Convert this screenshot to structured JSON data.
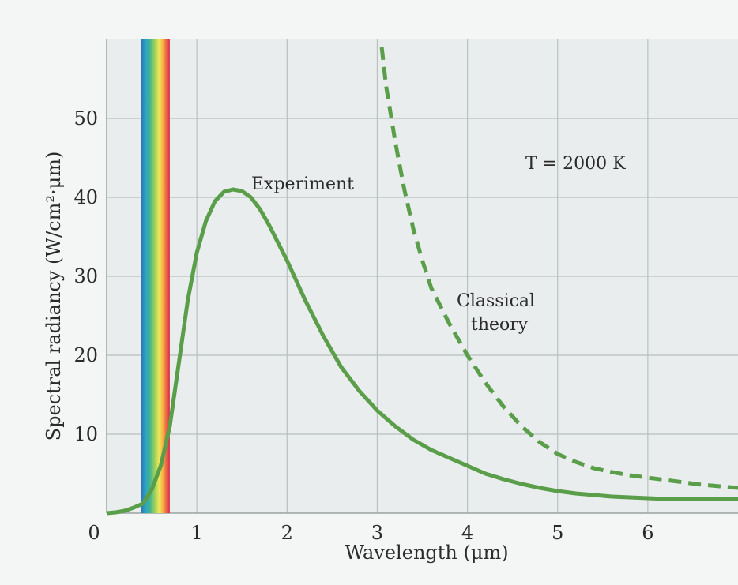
{
  "chart_data": {
    "type": "line",
    "title": "",
    "xlabel": "Wavelength (μm)",
    "ylabel": "Spectral radiancy (W/cm²·μm)",
    "xlim": [
      0,
      7
    ],
    "ylim": [
      0,
      60
    ],
    "x_ticks": [
      {
        "value": 0,
        "label": "0"
      },
      {
        "value": 1,
        "label": "1"
      },
      {
        "value": 2,
        "label": "2"
      },
      {
        "value": 3,
        "label": "3"
      },
      {
        "value": 4,
        "label": "4"
      },
      {
        "value": 5,
        "label": "5"
      },
      {
        "value": 6,
        "label": "6"
      }
    ],
    "y_ticks": [
      {
        "value": 10,
        "label": "10"
      },
      {
        "value": 20,
        "label": "20"
      },
      {
        "value": 30,
        "label": "30"
      },
      {
        "value": 40,
        "label": "40"
      },
      {
        "value": 50,
        "label": "50"
      }
    ],
    "grid": true,
    "annotation": "T = 2000 K",
    "visible_band": {
      "x_start": 0.38,
      "x_end": 0.7
    },
    "series": [
      {
        "name": "Experiment",
        "style": "solid",
        "color": "#5a9e4a",
        "x": [
          0,
          0.1,
          0.2,
          0.3,
          0.4,
          0.5,
          0.6,
          0.7,
          0.8,
          0.9,
          1.0,
          1.1,
          1.2,
          1.3,
          1.4,
          1.5,
          1.6,
          1.7,
          1.8,
          2.0,
          2.2,
          2.4,
          2.6,
          2.8,
          3.0,
          3.2,
          3.4,
          3.6,
          3.8,
          4.0,
          4.2,
          4.4,
          4.6,
          4.8,
          5.0,
          5.2,
          5.4,
          5.6,
          5.8,
          6.0,
          6.2,
          6.4,
          6.6,
          6.8,
          7.0
        ],
        "y": [
          0,
          0.1,
          0.3,
          0.7,
          1.2,
          3.0,
          6.0,
          11.0,
          19.0,
          27.0,
          33.0,
          37.0,
          39.5,
          40.7,
          41.0,
          40.8,
          40.0,
          38.5,
          36.5,
          32.0,
          27.0,
          22.5,
          18.5,
          15.5,
          13.0,
          11.0,
          9.3,
          8.0,
          7.0,
          6.0,
          5.0,
          4.3,
          3.7,
          3.2,
          2.8,
          2.5,
          2.3,
          2.1,
          2.0,
          1.9,
          1.8,
          1.8,
          1.8,
          1.8,
          1.8
        ]
      },
      {
        "name": "Classical theory",
        "label_lines": [
          "Classical",
          "theory"
        ],
        "style": "dashed",
        "color": "#5a9e4a",
        "x": [
          3.05,
          3.1,
          3.2,
          3.3,
          3.4,
          3.5,
          3.6,
          3.8,
          4.0,
          4.2,
          4.4,
          4.6,
          4.8,
          5.0,
          5.2,
          5.4,
          5.6,
          5.8,
          6.0,
          6.2,
          6.4,
          6.6,
          6.8,
          7.0
        ],
        "y": [
          59,
          54,
          47,
          41,
          36,
          32,
          28.5,
          24,
          20,
          16.5,
          13.5,
          11,
          9.0,
          7.5,
          6.5,
          5.7,
          5.2,
          4.8,
          4.5,
          4.2,
          3.9,
          3.6,
          3.4,
          3.2
        ]
      }
    ]
  }
}
